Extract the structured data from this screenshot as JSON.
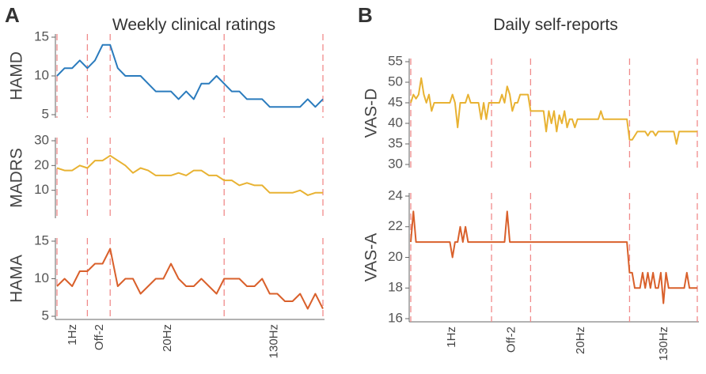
{
  "panels": [
    {
      "label": "A",
      "title": "Weekly clinical ratings",
      "phases": [
        "1Hz",
        "Off-2",
        "20Hz",
        "130Hz"
      ],
      "phase_bounds": [
        0,
        4,
        7,
        22,
        35
      ]
    },
    {
      "label": "B",
      "title": "Daily self-reports",
      "phases": [
        "1Hz",
        "Off-2",
        "20Hz",
        "130Hz"
      ],
      "phase_bounds": [
        0,
        31,
        46,
        84,
        110
      ]
    }
  ],
  "chart_data": [
    {
      "type": "line",
      "ylabel": "HAMD",
      "color": "#2a7bbd",
      "ylim": [
        5,
        15
      ],
      "yticks": [
        5,
        10,
        15
      ],
      "values": [
        10,
        11,
        11,
        12,
        11,
        12,
        14,
        14,
        11,
        10,
        10,
        10,
        9,
        8,
        8,
        8,
        7,
        8,
        7,
        9,
        9,
        10,
        9,
        8,
        8,
        7,
        7,
        7,
        6,
        6,
        6,
        6,
        6,
        7,
        6,
        7
      ]
    },
    {
      "type": "line",
      "ylabel": "MADRS",
      "color": "#e8b232",
      "ylim": [
        0,
        30
      ],
      "yticks": [
        10,
        20,
        30
      ],
      "values": [
        19,
        18,
        18,
        20,
        19,
        22,
        22,
        24,
        22,
        20,
        17,
        19,
        18,
        16,
        16,
        16,
        17,
        16,
        18,
        18,
        16,
        16,
        14,
        14,
        12,
        13,
        12,
        12,
        9,
        9,
        9,
        9,
        10,
        8,
        9,
        9
      ]
    },
    {
      "type": "line",
      "ylabel": "HAMA",
      "color": "#d9602b",
      "ylim": [
        5,
        15
      ],
      "yticks": [
        5,
        10,
        15
      ],
      "values": [
        9,
        10,
        9,
        11,
        11,
        12,
        12,
        14,
        9,
        10,
        10,
        8,
        9,
        10,
        10,
        12,
        10,
        9,
        9,
        10,
        9,
        8,
        10,
        10,
        10,
        9,
        9,
        10,
        8,
        8,
        7,
        7,
        8,
        6,
        8,
        6
      ]
    },
    {
      "type": "line",
      "ylabel": "VAS-D",
      "color": "#e8b232",
      "ylim": [
        30,
        55
      ],
      "yticks": [
        30,
        35,
        40,
        45,
        50,
        55
      ],
      "values": [
        45,
        47,
        46,
        47,
        51,
        47,
        45,
        47,
        43,
        45,
        45,
        45,
        45,
        45,
        45,
        45,
        47,
        45,
        39,
        45,
        45,
        45,
        47,
        45,
        45,
        45,
        45,
        41,
        45,
        41,
        45,
        45,
        45,
        45,
        45,
        47,
        45,
        49,
        47,
        43,
        45,
        45,
        47,
        47,
        47,
        47,
        43,
        43,
        43,
        43,
        43,
        43,
        38,
        43,
        40,
        43,
        38,
        42,
        40,
        43,
        39,
        41,
        41,
        39,
        41,
        41,
        41,
        41,
        41,
        41,
        41,
        41,
        41,
        43,
        41,
        41,
        41,
        41,
        41,
        41,
        41,
        41,
        41,
        41,
        36,
        36,
        37,
        38,
        38,
        38,
        38,
        37,
        38,
        38,
        37,
        38,
        38,
        38,
        38,
        38,
        38,
        38,
        35,
        38,
        38,
        38,
        38,
        38,
        38,
        38,
        38
      ]
    },
    {
      "type": "line",
      "ylabel": "VAS-A",
      "color": "#d9602b",
      "ylim": [
        16,
        24
      ],
      "yticks": [
        16,
        18,
        20,
        22,
        24
      ],
      "values": [
        21,
        23,
        21,
        21,
        21,
        21,
        21,
        21,
        21,
        21,
        21,
        21,
        21,
        21,
        21,
        21,
        20,
        21,
        21,
        22,
        21,
        22,
        21,
        21,
        21,
        21,
        21,
        21,
        21,
        21,
        21,
        21,
        21,
        21,
        21,
        21,
        21,
        23,
        21,
        21,
        21,
        21,
        21,
        21,
        21,
        21,
        21,
        21,
        21,
        21,
        21,
        21,
        21,
        21,
        21,
        21,
        21,
        21,
        21,
        21,
        21,
        21,
        21,
        21,
        21,
        21,
        21,
        21,
        21,
        21,
        21,
        21,
        21,
        21,
        21,
        21,
        21,
        21,
        21,
        21,
        21,
        21,
        21,
        21,
        19,
        19,
        18,
        18,
        18,
        19,
        18,
        19,
        18,
        19,
        18,
        18,
        19,
        17,
        19,
        18,
        18,
        18,
        18,
        18,
        18,
        18,
        19,
        18,
        18,
        18,
        18
      ]
    }
  ]
}
